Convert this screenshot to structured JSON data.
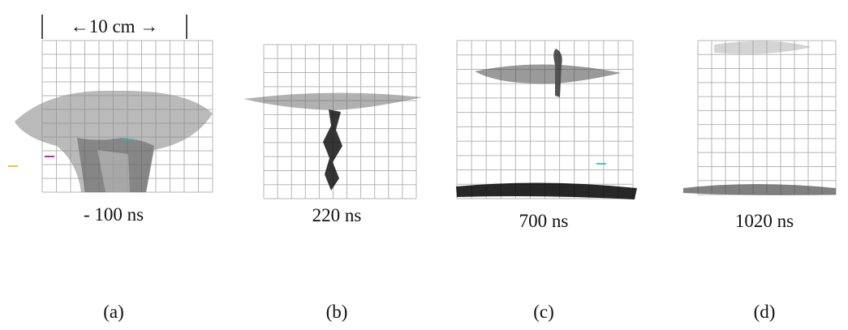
{
  "scale_label": "←10 cm →",
  "panels": [
    {
      "time": "- 100 ns",
      "label": "(a)"
    },
    {
      "time": "220 ns",
      "label": "(b)"
    },
    {
      "time": "700 ns",
      "label": "(c)"
    },
    {
      "time": "1020 ns",
      "label": "(d)"
    }
  ]
}
